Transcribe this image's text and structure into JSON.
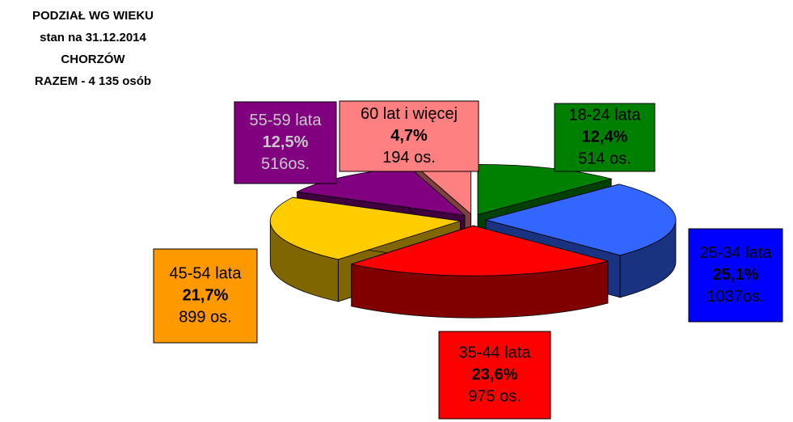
{
  "chart_data": {
    "type": "pie3d",
    "title": [
      "PODZIAŁ WG WIEKU",
      "stan na 31.12.2014",
      "CHORZÓW",
      "RAZEM -  4 135 osób"
    ],
    "categories": [
      "18-24 lata",
      "25-34 lata",
      "35-44 lata",
      "45-54 lata",
      "55-59 lata",
      "60 lat i więcej"
    ],
    "values": [
      12.4,
      25.1,
      23.6,
      21.7,
      12.5,
      4.7
    ],
    "value_labels": [
      "12,4%",
      "25,1%",
      "23,6%",
      "21,7%",
      "12,5%",
      "4,7%"
    ],
    "counts": [
      "514 os.",
      "1037os.",
      "975 os.",
      "899 os.",
      "516os.",
      "194 os."
    ],
    "colors": [
      "#008000",
      "#3366ff",
      "#ff0000",
      "#ffcc00",
      "#800080",
      "#ff8080"
    ],
    "label_colors": [
      "#008000",
      "#0000ff",
      "#ff0000",
      "#ff9900",
      "#800080",
      "#ff8080"
    ],
    "label_text_colors": [
      "#000000",
      "#000000",
      "#000000",
      "#000000",
      "#c8c8c8",
      "#000000"
    ]
  }
}
